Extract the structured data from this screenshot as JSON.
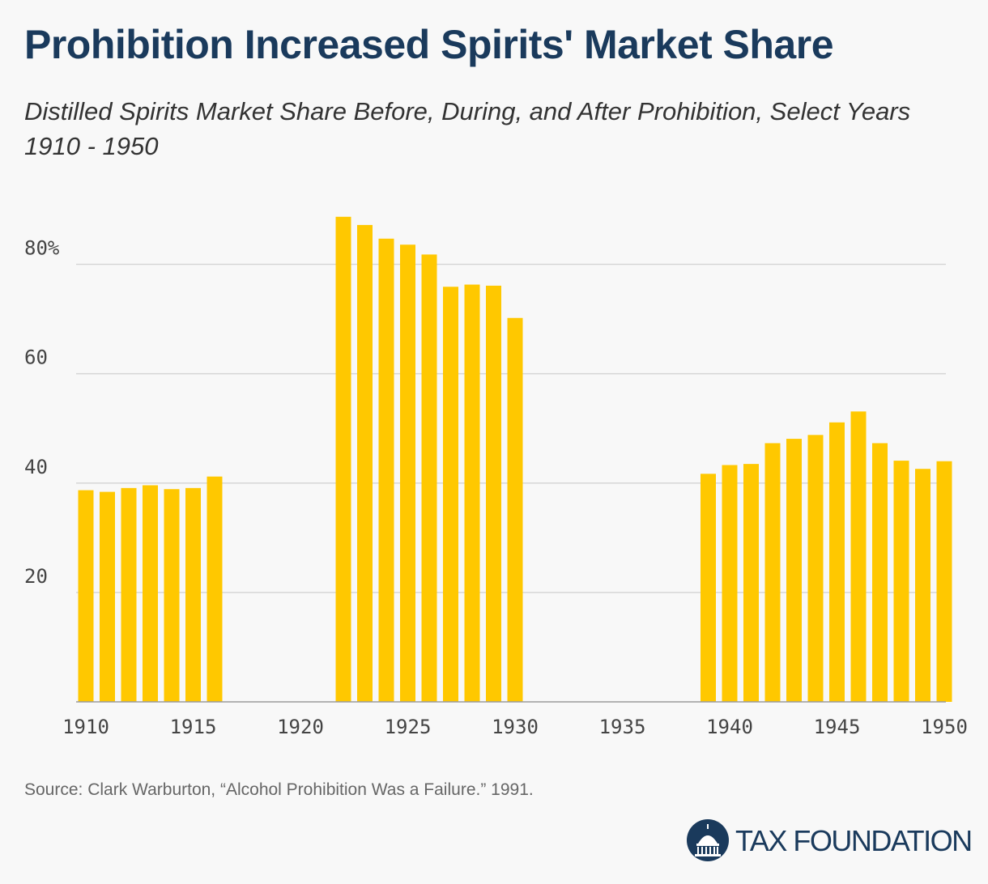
{
  "title": "Prohibition Increased Spirits' Market Share",
  "subtitle": "Distilled Spirits Market Share Before, During, and After Prohibition, Select Years 1910 - 1950",
  "source": "Source: Clark Warburton, “Alcohol Prohibition Was a Failure.” 1991.",
  "logo": {
    "text": "TAX FOUNDATION",
    "icon": "capitol-dome-icon"
  },
  "colors": {
    "bar": "#ffc800",
    "title": "#1a3a5c",
    "grid": "#d6d6d6"
  },
  "chart_data": {
    "type": "bar",
    "x": [
      1910,
      1911,
      1912,
      1913,
      1914,
      1915,
      1916,
      1922,
      1923,
      1924,
      1925,
      1926,
      1927,
      1928,
      1929,
      1930,
      1939,
      1940,
      1941,
      1942,
      1943,
      1944,
      1945,
      1946,
      1947,
      1948,
      1949,
      1950
    ],
    "values": [
      38.7,
      38.4,
      39.1,
      39.6,
      38.9,
      39.1,
      41.2,
      88.7,
      87.2,
      84.7,
      83.6,
      81.8,
      75.9,
      76.3,
      76.1,
      70.2,
      41.7,
      43.3,
      43.5,
      47.3,
      48.1,
      48.8,
      51.1,
      53.1,
      47.3,
      44.1,
      42.6,
      44.0
    ],
    "xlim": [
      1910,
      1950
    ],
    "ylim": [
      0,
      90
    ],
    "x_ticks": [
      "1910",
      "1915",
      "1920",
      "1925",
      "1930",
      "1935",
      "1940",
      "1945",
      "1950"
    ],
    "y_ticks": [
      "20",
      "40",
      "60",
      "80%"
    ],
    "y_tick_values": [
      20,
      40,
      60,
      80
    ],
    "grid": true,
    "xlabel": "",
    "ylabel": ""
  }
}
